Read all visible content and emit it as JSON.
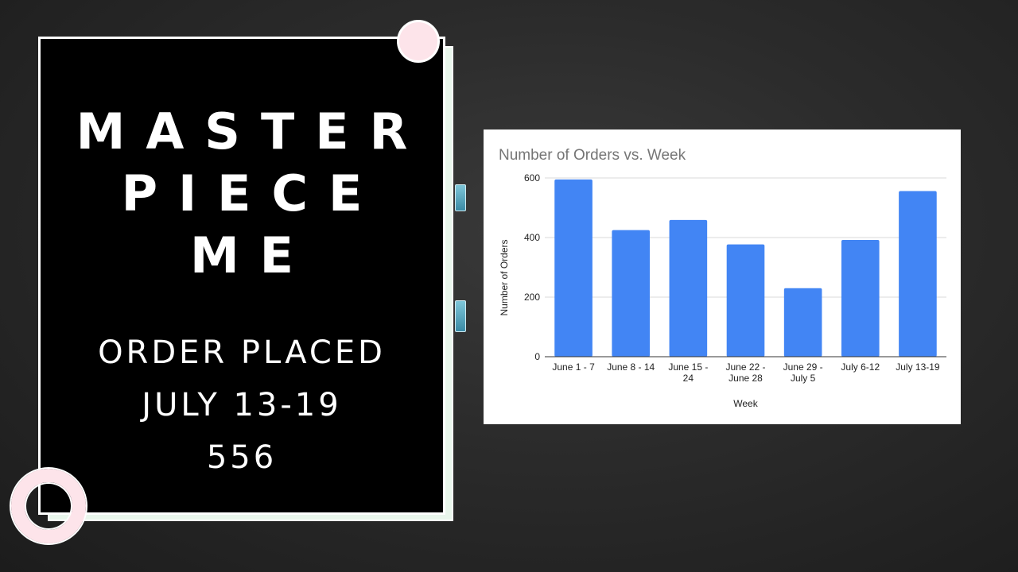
{
  "card": {
    "brand_lines": [
      "MASTER",
      "PIECE",
      "ME"
    ],
    "info_lines": [
      "ORDER PLACED",
      "JULY 13-19",
      "556"
    ]
  },
  "colors": {
    "bar": "#4285f4",
    "card_background": "#000000",
    "accent_pink": "#fde4ea",
    "accent_mint": "#e9f6ec"
  },
  "chart_data": {
    "type": "bar",
    "title": "Number of Orders vs. Week",
    "xlabel": "Week",
    "ylabel": "Number of Orders",
    "categories": [
      [
        "June 1 - 7"
      ],
      [
        "June 8 - 14"
      ],
      [
        "June 15 -",
        "24"
      ],
      [
        "June 22 -",
        "June 28"
      ],
      [
        "June 29 -",
        "July 5"
      ],
      [
        "July 6-12"
      ],
      [
        "July 13-19"
      ]
    ],
    "values": [
      595,
      425,
      459,
      377,
      230,
      392,
      556
    ],
    "ylim": [
      0,
      600
    ],
    "yticks": [
      0,
      200,
      400,
      600
    ],
    "grid": true,
    "legend": "none"
  }
}
